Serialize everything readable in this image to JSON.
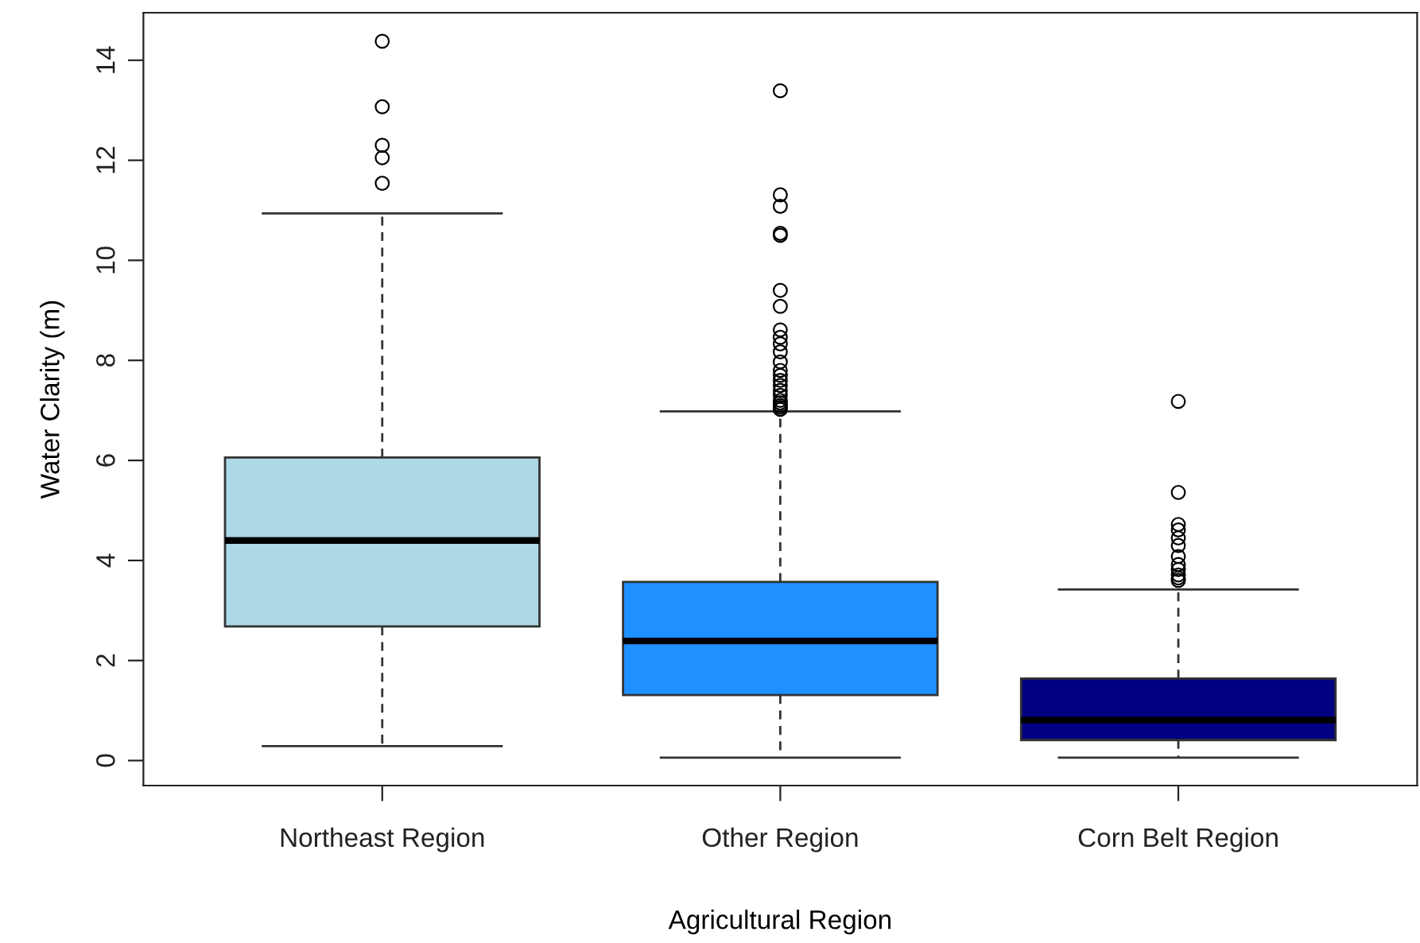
{
  "chart_data": {
    "type": "box",
    "xlabel": "Agricultural Region",
    "ylabel": "Water Clarity (m)",
    "categories": [
      "Northeast Region",
      "Other Region",
      "Corn Belt Region"
    ],
    "colors": [
      "#add8e6",
      "#1e90ff",
      "#000080"
    ],
    "boxes": [
      {
        "low": 0.29,
        "q1": 2.68,
        "median": 4.4,
        "q3": 6.06,
        "high": 10.94,
        "outliers": [
          11.54,
          12.05,
          12.3,
          13.07,
          14.38
        ]
      },
      {
        "low": 0.06,
        "q1": 1.31,
        "median": 2.39,
        "q3": 3.57,
        "high": 6.98,
        "outliers": [
          7.02,
          7.06,
          7.1,
          7.15,
          7.2,
          7.3,
          7.4,
          7.5,
          7.6,
          7.7,
          7.8,
          7.97,
          8.17,
          8.33,
          8.46,
          8.61,
          9.08,
          9.4,
          10.5,
          10.54,
          11.08,
          11.31,
          13.39
        ]
      },
      {
        "low": 0.06,
        "q1": 0.41,
        "median": 0.81,
        "q3": 1.64,
        "high": 3.42,
        "outliers": [
          3.6,
          3.65,
          3.71,
          3.82,
          3.92,
          4.08,
          4.3,
          4.45,
          4.61,
          4.72,
          5.36,
          7.18
        ]
      }
    ],
    "ylim": [
      -0.5,
      14.95
    ],
    "yticks": [
      0,
      2,
      4,
      6,
      8,
      10,
      12,
      14
    ],
    "grid": false
  }
}
